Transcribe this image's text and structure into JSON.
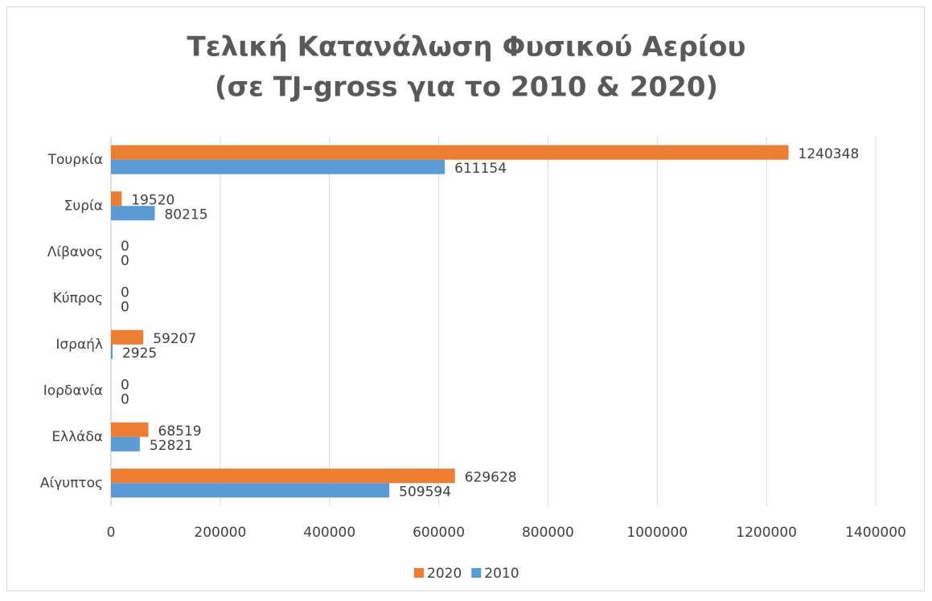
{
  "chart_data": {
    "type": "bar",
    "orientation": "horizontal",
    "title": [
      "Τελική Κατανάλωση Φυσικού Αερίου",
      "(σε TJ-gross για το 2010 & 2020)"
    ],
    "categories": [
      "Τουρκία",
      "Συρία",
      "Λίβανος",
      "Κύπρος",
      "Ισραήλ",
      "Ιορδανία",
      "Ελλάδα",
      "Αίγυπτος"
    ],
    "series": [
      {
        "name": "2020",
        "color": "#ed7d31",
        "values": [
          1240348,
          19520,
          0,
          0,
          59207,
          0,
          68519,
          629628
        ]
      },
      {
        "name": "2010",
        "color": "#5b9bd5",
        "values": [
          611154,
          80215,
          0,
          0,
          2925,
          0,
          52821,
          509594
        ]
      }
    ],
    "xlim": [
      0,
      1400000
    ],
    "xticks": [
      0,
      200000,
      400000,
      600000,
      800000,
      1000000,
      1200000,
      1400000
    ],
    "grid": true,
    "legend": "bottom"
  }
}
